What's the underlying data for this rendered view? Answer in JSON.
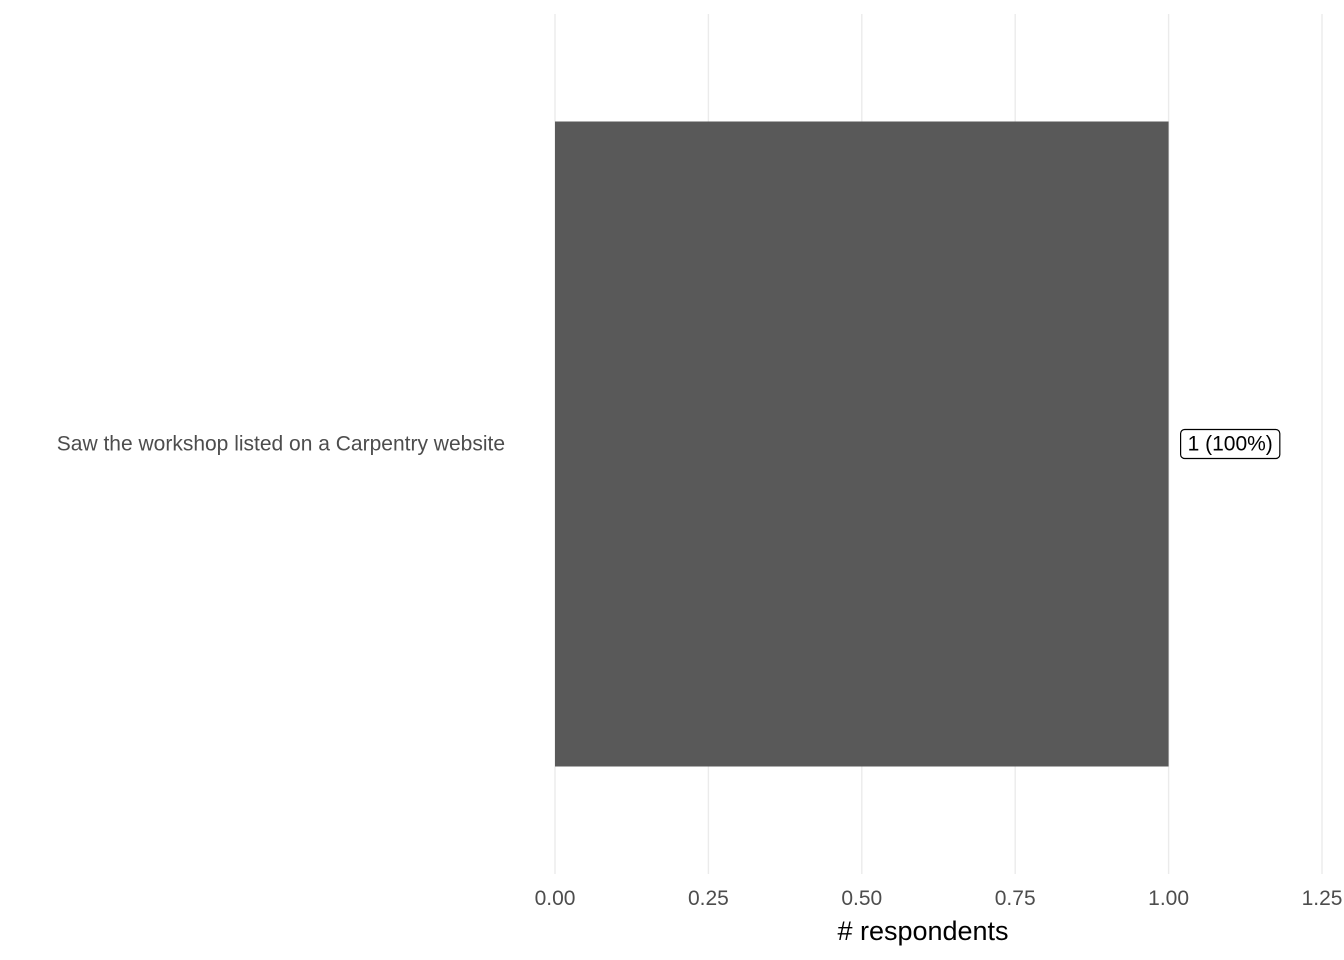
{
  "chart_data": {
    "type": "bar",
    "orientation": "horizontal",
    "categories": [
      "Saw the workshop listed on a Carpentry website"
    ],
    "values": [
      1
    ],
    "data_labels": [
      "1 (100%)"
    ],
    "xlabel": "# respondents",
    "ylabel": "",
    "title": "",
    "xlim": [
      0,
      1.25
    ],
    "xticks": [
      0,
      0.25,
      0.5,
      0.75,
      1,
      1.25
    ],
    "xtick_labels": [
      "0.00",
      "0.25",
      "0.50",
      "0.75",
      "1.00",
      "1.25"
    ],
    "grid": "vertical major",
    "legend": "none",
    "bar_color": "#595959"
  }
}
